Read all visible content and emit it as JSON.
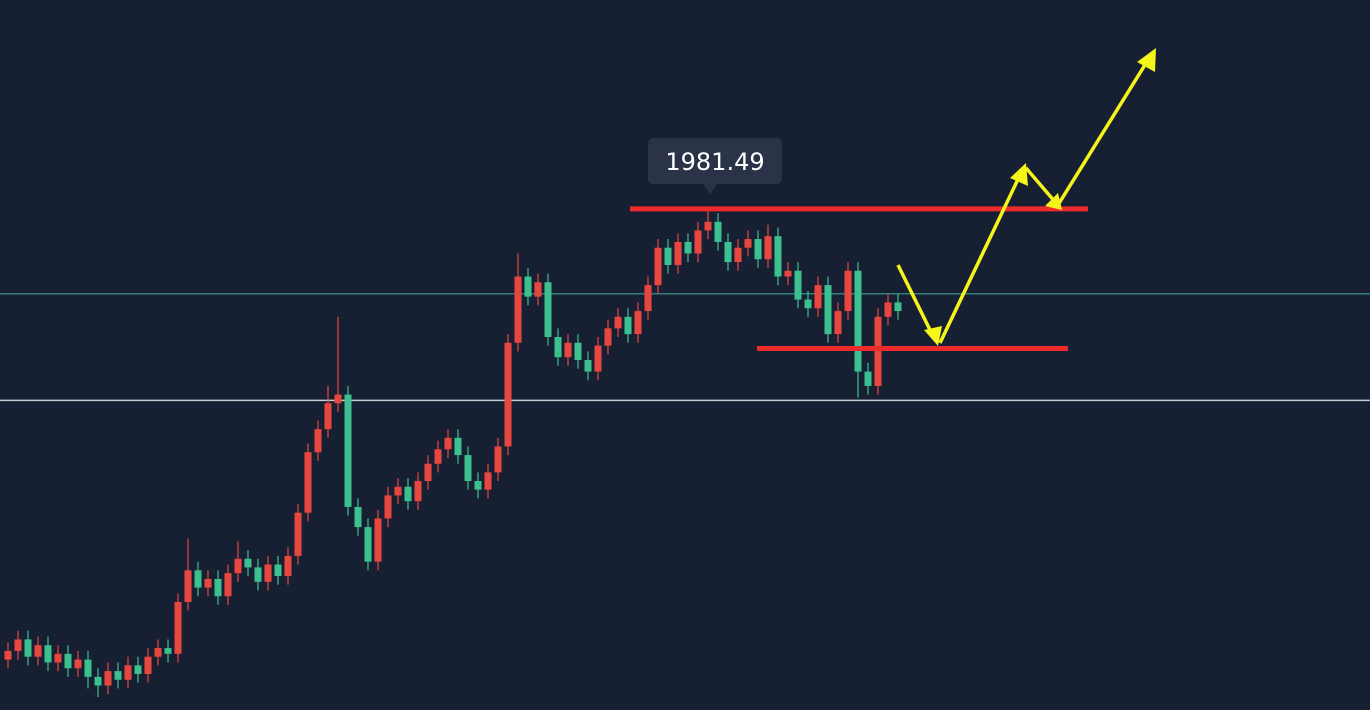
{
  "chart_data": {
    "type": "candlestick",
    "ylim": [
      1807.5,
      2054
    ],
    "up_color": "#e8473f",
    "down_color": "#3cc08f",
    "open": [
      1825,
      1828,
      1832,
      1826,
      1830,
      1824,
      1827,
      1822,
      1825,
      1819,
      1816,
      1821,
      1818,
      1823,
      1820,
      1826,
      1829,
      1827,
      1845,
      1856,
      1850,
      1853,
      1847,
      1855,
      1860,
      1857,
      1852,
      1858,
      1854,
      1861,
      1876,
      1897,
      1905,
      1914,
      1917,
      1878,
      1871,
      1859,
      1874,
      1882,
      1885,
      1880,
      1887,
      1893,
      1898,
      1902,
      1896,
      1887,
      1884,
      1890,
      1899,
      1935,
      1958,
      1951,
      1956,
      1937,
      1930,
      1935,
      1929,
      1925,
      1934,
      1940,
      1944,
      1938,
      1946,
      1955,
      1968,
      1962,
      1970,
      1966,
      1974,
      1977,
      1970,
      1963,
      1968,
      1971,
      1964,
      1972,
      1958,
      1960,
      1950,
      1947,
      1955,
      1938,
      1946,
      1960,
      1925,
      1920,
      1944,
      1949
    ],
    "high": [
      1831,
      1835,
      1835,
      1833,
      1833,
      1830,
      1830,
      1828,
      1828,
      1822,
      1824,
      1824,
      1826,
      1826,
      1829,
      1832,
      1832,
      1848,
      1867,
      1859,
      1856,
      1856,
      1858,
      1866,
      1863,
      1860,
      1861,
      1861,
      1864,
      1879,
      1900,
      1908,
      1920,
      1944,
      1920,
      1881,
      1874,
      1877,
      1885,
      1888,
      1888,
      1890,
      1896,
      1901,
      1905,
      1905,
      1899,
      1890,
      1893,
      1902,
      1938,
      1966,
      1961,
      1959,
      1959,
      1940,
      1938,
      1938,
      1932,
      1937,
      1943,
      1947,
      1947,
      1949,
      1958,
      1971,
      1971,
      1973,
      1973,
      1977,
      1981,
      1980,
      1973,
      1971,
      1974,
      1974,
      1976,
      1975,
      1963,
      1963,
      1953,
      1958,
      1958,
      1949,
      1963,
      1963,
      1928,
      1947,
      1952,
      1952
    ],
    "low": [
      1822,
      1825,
      1823,
      1823,
      1821,
      1821,
      1819,
      1819,
      1815,
      1812,
      1813,
      1815,
      1815,
      1817,
      1817,
      1823,
      1824,
      1824,
      1842,
      1847,
      1847,
      1844,
      1844,
      1852,
      1854,
      1849,
      1849,
      1851,
      1851,
      1858,
      1873,
      1894,
      1902,
      1911,
      1875,
      1868,
      1856,
      1856,
      1871,
      1879,
      1877,
      1877,
      1884,
      1890,
      1895,
      1893,
      1884,
      1881,
      1881,
      1887,
      1896,
      1932,
      1948,
      1948,
      1934,
      1927,
      1927,
      1926,
      1922,
      1922,
      1931,
      1937,
      1935,
      1935,
      1943,
      1952,
      1959,
      1959,
      1963,
      1963,
      1971,
      1967,
      1960,
      1960,
      1965,
      1961,
      1961,
      1955,
      1955,
      1947,
      1944,
      1944,
      1935,
      1935,
      1943,
      1916,
      1917,
      1917,
      1941,
      1943
    ],
    "close": [
      1828,
      1832,
      1826,
      1830,
      1824,
      1827,
      1822,
      1825,
      1819,
      1816,
      1821,
      1818,
      1823,
      1820,
      1826,
      1829,
      1827,
      1845,
      1856,
      1850,
      1853,
      1847,
      1855,
      1860,
      1857,
      1852,
      1858,
      1854,
      1861,
      1876,
      1897,
      1905,
      1914,
      1917,
      1878,
      1871,
      1859,
      1874,
      1882,
      1885,
      1880,
      1887,
      1893,
      1898,
      1902,
      1896,
      1887,
      1884,
      1890,
      1899,
      1935,
      1958,
      1951,
      1956,
      1937,
      1930,
      1935,
      1929,
      1925,
      1934,
      1940,
      1944,
      1938,
      1946,
      1955,
      1968,
      1962,
      1970,
      1966,
      1974,
      1977,
      1970,
      1963,
      1968,
      1971,
      1964,
      1972,
      1958,
      1960,
      1950,
      1947,
      1955,
      1938,
      1946,
      1960,
      1925,
      1920,
      1944,
      1949,
      1946
    ],
    "resistance": 1981.49,
    "support": 1933,
    "reference_lines": [
      {
        "value": 1952,
        "color": "#2f7f78"
      },
      {
        "value": 1915,
        "color": "#c8ccd4"
      }
    ],
    "level_color": "#ee2a2a"
  }
}
